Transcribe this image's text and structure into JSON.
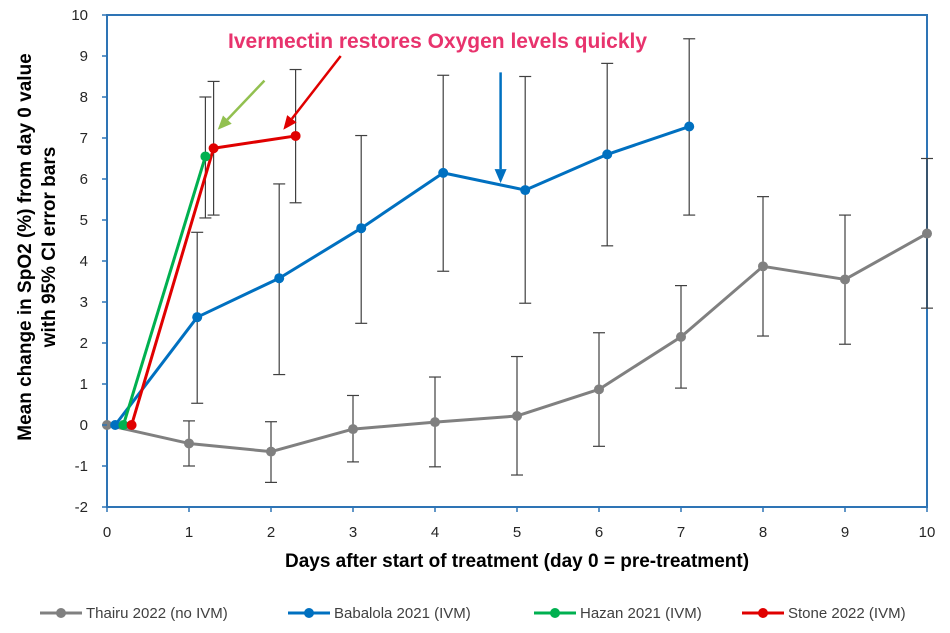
{
  "chart_data": {
    "type": "line",
    "title": "",
    "xlabel": "Days after start of treatment (day 0 = pre-treatment)",
    "ylabel_lines": [
      "Mean change in SpO2 (%) from day 0 value",
      "with 95% CI error bars"
    ],
    "xlim": [
      0,
      10
    ],
    "ylim": [
      -2,
      10
    ],
    "x_ticks": [
      "0",
      "1",
      "2",
      "3",
      "4",
      "5",
      "6",
      "7",
      "8",
      "9",
      "10"
    ],
    "y_ticks": [
      "-2",
      "-1",
      "0",
      "1",
      "2",
      "3",
      "4",
      "5",
      "6",
      "7",
      "8",
      "9",
      "10"
    ],
    "grid": false,
    "legend_position": "bottom",
    "annotation": "Ivermectin restores Oxygen levels quickly",
    "series": [
      {
        "name": "Thairu 2022 (no IVM)",
        "color": "#808080",
        "points": [
          {
            "x": 0,
            "y": 0
          },
          {
            "x": 1,
            "y": -0.45,
            "lo": -1.0,
            "hi": 0.1
          },
          {
            "x": 2,
            "y": -0.65,
            "lo": -1.4,
            "hi": 0.08
          },
          {
            "x": 3,
            "y": -0.1,
            "lo": -0.9,
            "hi": 0.72
          },
          {
            "x": 4,
            "y": 0.07,
            "lo": -1.02,
            "hi": 1.17
          },
          {
            "x": 5,
            "y": 0.22,
            "lo": -1.22,
            "hi": 1.67
          },
          {
            "x": 6,
            "y": 0.87,
            "lo": -0.52,
            "hi": 2.25
          },
          {
            "x": 7,
            "y": 2.15,
            "lo": 0.9,
            "hi": 3.4
          },
          {
            "x": 8,
            "y": 3.87,
            "lo": 2.17,
            "hi": 5.57
          },
          {
            "x": 9,
            "y": 3.55,
            "lo": 1.97,
            "hi": 5.12
          },
          {
            "x": 10,
            "y": 4.67,
            "lo": 2.85,
            "hi": 6.5
          }
        ]
      },
      {
        "name": "Babalola 2021 (IVM)",
        "color": "#0070c0",
        "points": [
          {
            "x": 0.1,
            "y": 0
          },
          {
            "x": 1.1,
            "y": 2.63,
            "lo": 0.53,
            "hi": 4.7
          },
          {
            "x": 2.1,
            "y": 3.58,
            "lo": 1.23,
            "hi": 5.88
          },
          {
            "x": 3.1,
            "y": 4.8,
            "lo": 2.48,
            "hi": 7.06
          },
          {
            "x": 4.1,
            "y": 6.15,
            "lo": 3.75,
            "hi": 8.53
          },
          {
            "x": 5.1,
            "y": 5.73,
            "lo": 2.97,
            "hi": 8.5
          },
          {
            "x": 6.1,
            "y": 6.6,
            "lo": 4.37,
            "hi": 8.82
          },
          {
            "x": 7.1,
            "y": 7.28,
            "lo": 5.12,
            "hi": 9.42
          }
        ]
      },
      {
        "name": "Hazan 2021 (IVM)",
        "color": "#00b050",
        "points": [
          {
            "x": 0.2,
            "y": 0
          },
          {
            "x": 1.2,
            "y": 6.55,
            "lo": 5.05,
            "hi": 8.0
          }
        ]
      },
      {
        "name": "Stone 2022 (IVM)",
        "color": "#e00000",
        "points": [
          {
            "x": 0.3,
            "y": 0
          },
          {
            "x": 1.3,
            "y": 6.75,
            "lo": 5.12,
            "hi": 8.38
          },
          {
            "x": 2.3,
            "y": 7.05,
            "lo": 5.42,
            "hi": 8.67
          }
        ]
      }
    ],
    "arrows": [
      {
        "name": "green-arrow",
        "color": "#92c050",
        "from": [
          1.92,
          8.4
        ],
        "to": [
          1.35,
          7.2
        ]
      },
      {
        "name": "red-arrow",
        "color": "#e00000",
        "from": [
          2.85,
          9.0
        ],
        "to": [
          2.15,
          7.2
        ]
      },
      {
        "name": "blue-arrow",
        "color": "#0070c0",
        "from": [
          4.8,
          8.6
        ],
        "to": [
          4.8,
          5.9
        ]
      }
    ]
  }
}
